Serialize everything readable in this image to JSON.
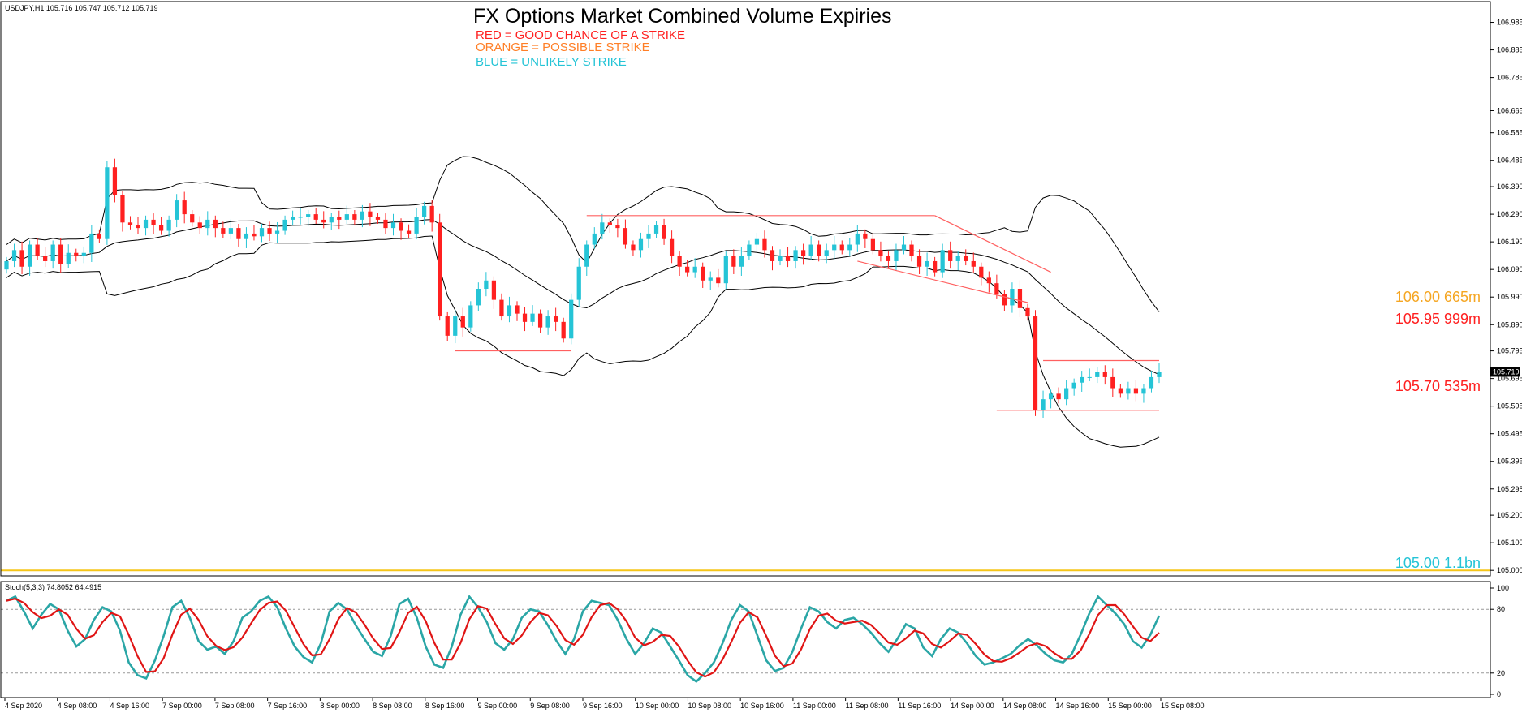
{
  "header": {
    "symbol_info": "USDJPY,H1  105.716 105.747 105.712 105.719",
    "title": "FX Options Market Combined Volume Expiries",
    "legend": [
      {
        "text": "RED = GOOD CHANCE OF A STRIKE",
        "color": "#ff2020"
      },
      {
        "text": "ORANGE = POSSIBLE STRIKE",
        "color": "#ff7f27"
      },
      {
        "text": "BLUE = UNLIKELY STRIKE",
        "color": "#25c4d6"
      }
    ]
  },
  "expiries": [
    {
      "label": "106.00 665m",
      "price": 106.0,
      "color": "#f5a623"
    },
    {
      "label": "105.95 999m",
      "price": 105.95,
      "color": "#ff2020"
    },
    {
      "label": "105.70 535m",
      "price": 105.7,
      "color": "#ff2020"
    },
    {
      "label": "105.00 1.1bn",
      "price": 105.0,
      "color": "#25c4d6"
    }
  ],
  "current_price": {
    "label": "105.719",
    "value": 105.719
  },
  "stoch_label": "Stoch(5,3,3) 74.8052 64.4915",
  "chart_data": {
    "type": "candlestick",
    "y_ticks": [
      "106.985",
      "106.885",
      "106.785",
      "106.665",
      "106.585",
      "106.485",
      "106.390",
      "106.290",
      "106.190",
      "106.090",
      "105.990",
      "105.890",
      "105.795",
      "105.695",
      "105.595",
      "105.495",
      "105.395",
      "105.295",
      "105.200",
      "105.100",
      "105.000"
    ],
    "ylim": [
      104.98,
      107.06
    ],
    "x_ticks": [
      "4 Sep 2020",
      "4 Sep 08:00",
      "4 Sep 16:00",
      "7 Sep 00:00",
      "7 Sep 08:00",
      "7 Sep 16:00",
      "8 Sep 00:00",
      "8 Sep 08:00",
      "8 Sep 16:00",
      "9 Sep 00:00",
      "9 Sep 08:00",
      "9 Sep 16:00",
      "10 Sep 00:00",
      "10 Sep 08:00",
      "10 Sep 16:00",
      "11 Sep 00:00",
      "11 Sep 08:00",
      "11 Sep 16:00",
      "14 Sep 00:00",
      "14 Sep 08:00",
      "14 Sep 16:00",
      "15 Sep 00:00",
      "15 Sep 08:00"
    ],
    "stoch_ticks": [
      "100",
      "80",
      "20",
      "0"
    ],
    "closes": [
      106.12,
      106.16,
      106.1,
      106.18,
      106.14,
      106.12,
      106.18,
      106.11,
      106.15,
      106.14,
      106.15,
      106.22,
      106.2,
      106.46,
      106.36,
      106.26,
      106.25,
      106.24,
      106.27,
      106.25,
      106.23,
      106.27,
      106.34,
      106.29,
      106.26,
      106.24,
      106.27,
      106.24,
      106.22,
      106.24,
      106.2,
      106.22,
      106.21,
      106.24,
      106.22,
      106.23,
      106.27,
      106.28,
      106.28,
      106.29,
      106.27,
      106.26,
      106.28,
      106.27,
      106.29,
      106.27,
      106.3,
      106.28,
      106.27,
      106.24,
      106.26,
      106.23,
      106.22,
      106.28,
      106.32,
      106.26,
      105.92,
      105.85,
      105.92,
      105.88,
      105.96,
      106.02,
      106.05,
      105.98,
      105.92,
      105.96,
      105.93,
      105.9,
      105.93,
      105.88,
      105.92,
      105.9,
      105.84,
      105.98,
      106.1,
      106.18,
      106.22,
      106.26,
      106.25,
      106.24,
      106.18,
      106.16,
      106.2,
      106.22,
      106.25,
      106.2,
      106.14,
      106.1,
      106.08,
      106.1,
      106.05,
      106.06,
      106.04,
      106.14,
      106.1,
      106.14,
      106.18,
      106.2,
      106.16,
      106.12,
      106.14,
      106.12,
      106.16,
      106.14,
      106.18,
      106.14,
      106.16,
      106.18,
      106.16,
      106.18,
      106.22,
      106.2,
      106.16,
      106.14,
      106.12,
      106.16,
      106.18,
      106.14,
      106.1,
      106.12,
      106.08,
      106.16,
      106.12,
      106.14,
      106.12,
      106.1,
      106.06,
      106.04,
      106.0,
      105.96,
      106.02,
      105.95,
      105.92,
      105.58,
      105.62,
      105.64,
      105.62,
      105.66,
      105.68,
      105.7,
      105.7,
      105.72,
      105.7,
      105.66,
      105.64,
      105.66,
      105.64,
      105.66,
      105.7,
      105.72
    ],
    "stoch_main": [
      88,
      92,
      78,
      62,
      75,
      85,
      80,
      60,
      45,
      52,
      70,
      82,
      78,
      60,
      30,
      18,
      15,
      32,
      55,
      82,
      88,
      72,
      50,
      42,
      45,
      38,
      50,
      72,
      78,
      88,
      92,
      82,
      62,
      45,
      35,
      30,
      48,
      78,
      86,
      80,
      65,
      52,
      40,
      36,
      55,
      85,
      90,
      72,
      45,
      28,
      25,
      45,
      75,
      92,
      82,
      68,
      48,
      42,
      52,
      72,
      80,
      78,
      65,
      50,
      38,
      52,
      78,
      88,
      86,
      84,
      70,
      52,
      38,
      48,
      62,
      58,
      45,
      32,
      18,
      12,
      20,
      30,
      48,
      70,
      84,
      78,
      55,
      32,
      22,
      25,
      40,
      62,
      82,
      78,
      68,
      62,
      70,
      72,
      66,
      58,
      48,
      40,
      52,
      66,
      62,
      44,
      36,
      52,
      62,
      58,
      48,
      36,
      28,
      30,
      34,
      38,
      46,
      52,
      46,
      38,
      32,
      30,
      38,
      56,
      76,
      92,
      84,
      76,
      66,
      50,
      44,
      56,
      74
    ]
  }
}
